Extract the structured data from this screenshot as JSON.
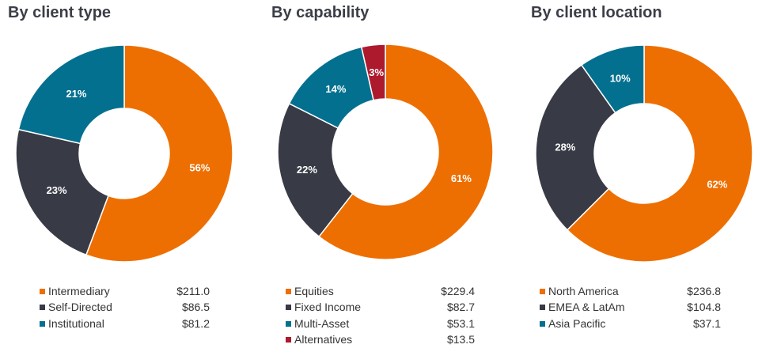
{
  "colors": {
    "orange": "#ee6f01",
    "charcoal": "#383b46",
    "teal": "#04708f",
    "red": "#ad1a2e"
  },
  "chart_data": [
    {
      "type": "pie",
      "title": "By client type",
      "categories": [
        "Intermediary",
        "Self-Directed",
        "Institutional"
      ],
      "values": [
        211.0,
        86.5,
        81.2
      ],
      "value_labels": [
        "$211.0",
        "$86.5",
        "$81.2"
      ],
      "percent_labels": [
        "56%",
        "23%",
        "21%"
      ],
      "colors": [
        "#ee6f01",
        "#383b46",
        "#04708f"
      ],
      "legend": "bottom"
    },
    {
      "type": "pie",
      "title": "By capability",
      "categories": [
        "Equities",
        "Fixed Income",
        "Multi-Asset",
        "Alternatives"
      ],
      "values": [
        229.4,
        82.7,
        53.1,
        13.5
      ],
      "value_labels": [
        "$229.4",
        "$82.7",
        "$53.1",
        "$13.5"
      ],
      "percent_labels": [
        "61%",
        "22%",
        "14%",
        "3%"
      ],
      "colors": [
        "#ee6f01",
        "#383b46",
        "#04708f",
        "#ad1a2e"
      ],
      "legend": "bottom"
    },
    {
      "type": "pie",
      "title": "By client location",
      "categories": [
        "North America",
        "EMEA & LatAm",
        "Asia Pacific"
      ],
      "values": [
        236.8,
        104.8,
        37.1
      ],
      "value_labels": [
        "$236.8",
        "$104.8",
        "$37.1"
      ],
      "percent_labels": [
        "62%",
        "28%",
        "10%"
      ],
      "colors": [
        "#ee6f01",
        "#383b46",
        "#04708f"
      ],
      "legend": "bottom"
    }
  ]
}
